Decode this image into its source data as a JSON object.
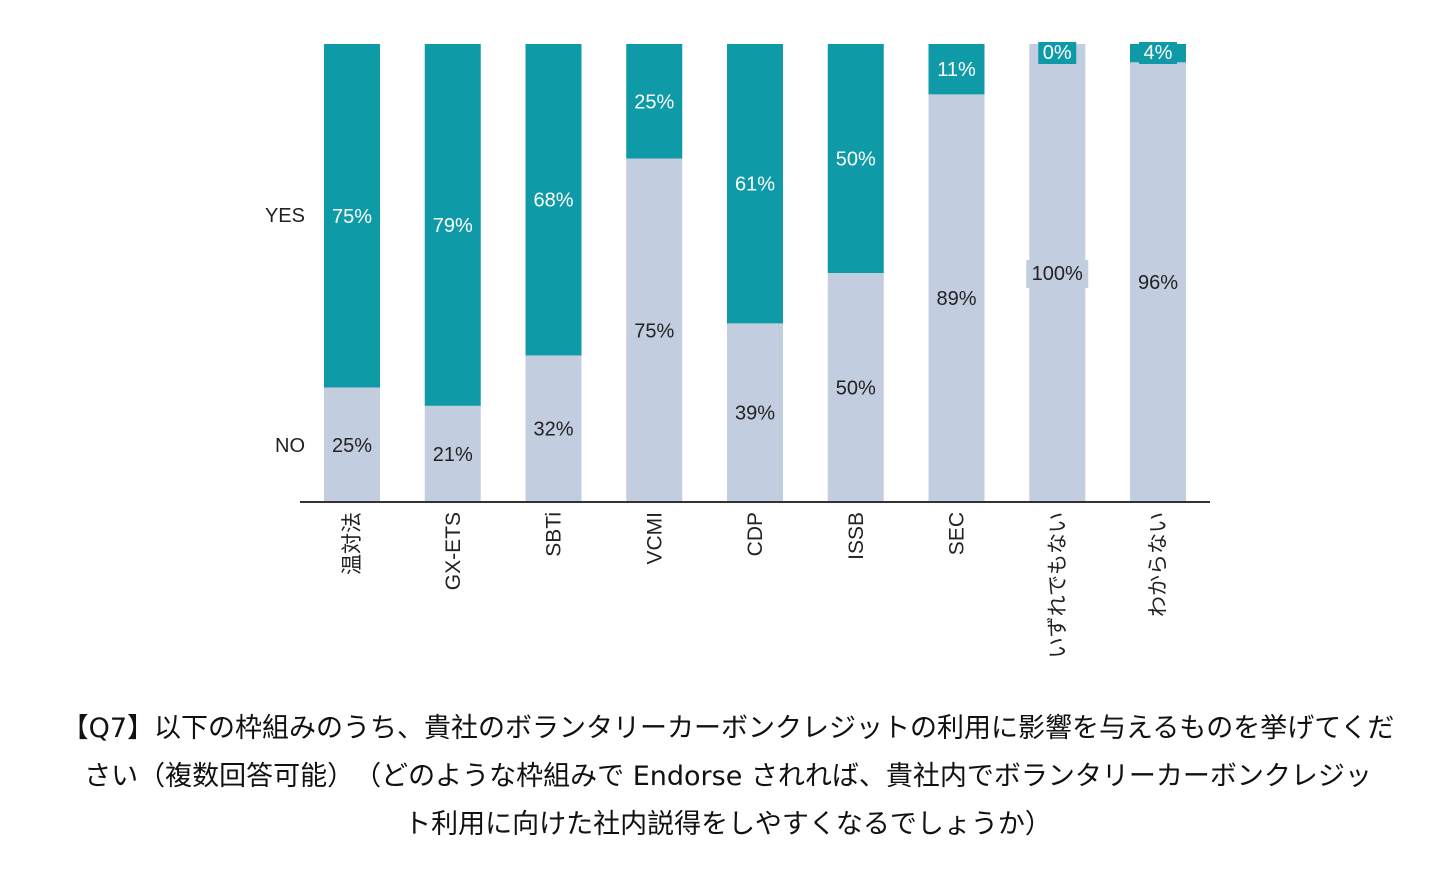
{
  "chart_data": {
    "type": "bar",
    "stacked": true,
    "percent": true,
    "categories": [
      "温対法",
      "GX-ETS",
      "SBTi",
      "VCMI",
      "CDP",
      "ISSB",
      "SEC",
      "いずれでもない",
      "わからない"
    ],
    "series": [
      {
        "name": "NO",
        "color": "#c3cde0",
        "values": [
          25,
          21,
          32,
          75,
          39,
          50,
          89,
          100,
          96
        ]
      },
      {
        "name": "YES",
        "color": "#0f9aa8",
        "values": [
          75,
          79,
          68,
          25,
          61,
          50,
          11,
          0,
          4
        ]
      }
    ],
    "data_labels": [
      {
        "no": "25%",
        "yes": "75%"
      },
      {
        "no": "21%",
        "yes": "79%"
      },
      {
        "no": "32%",
        "yes": "68%"
      },
      {
        "no": "75%",
        "yes": "25%"
      },
      {
        "no": "39%",
        "yes": "61%"
      },
      {
        "no": "50%",
        "yes": "50%"
      },
      {
        "no": "89%",
        "yes": "11%"
      },
      {
        "no": "100%",
        "yes": "0%"
      },
      {
        "no": "96%",
        "yes": "4%"
      }
    ],
    "ylim": [
      0,
      100
    ],
    "legend": "left",
    "grid": false
  },
  "caption": {
    "line1": "【Q7】以下の枠組みのうち、貴社のボランタリーカーボンクレジットの利用に影響を与えるものを挙げてくだ",
    "line2": "さい（複数回答可能）　（どのような枠組みで Endorse されれば、貴社内でボランタリーカーボンクレジッ",
    "line3": "ト利用に向けた社内説得をしやすくなるでしょうか）"
  }
}
